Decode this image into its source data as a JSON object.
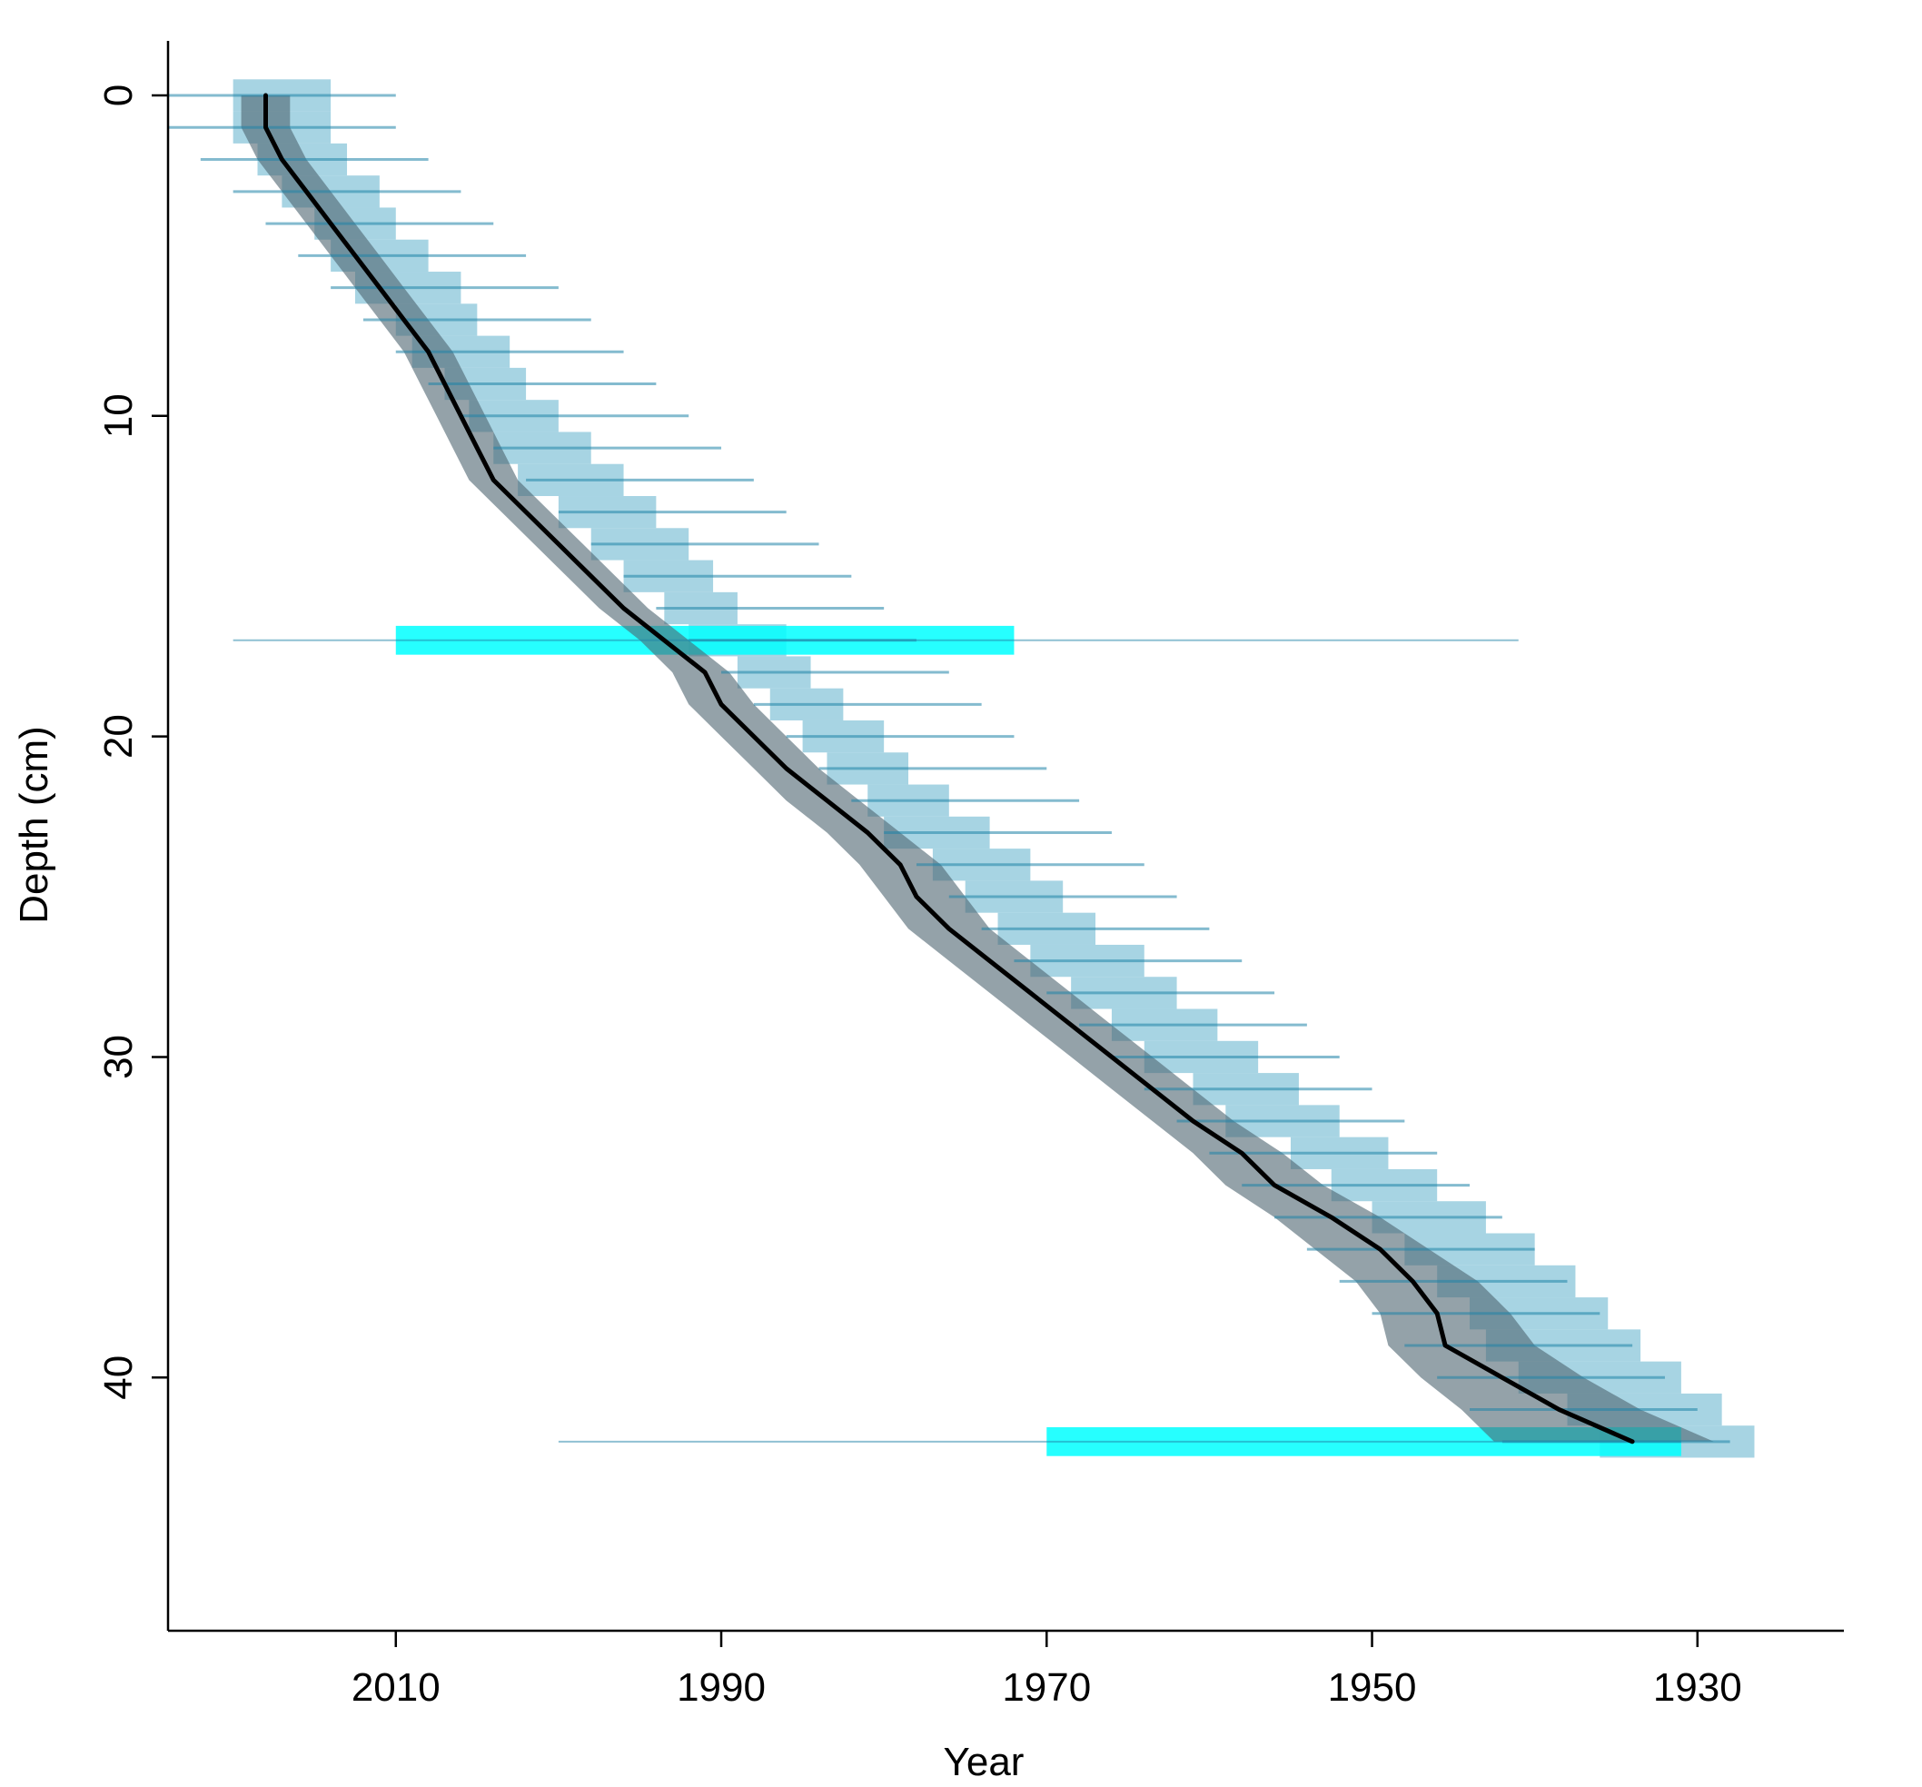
{
  "chart_data": {
    "type": "line",
    "title": "",
    "xlabel": "Year",
    "ylabel": "Depth (cm)",
    "x_axis_reversed": true,
    "y_axis_reversed": true,
    "xlim": [
      2024,
      1921
    ],
    "ylim": [
      -1.7,
      47.9
    ],
    "x_ticks": [
      2010,
      1990,
      1970,
      1950,
      1930
    ],
    "x_tick_labels": [
      "2010",
      "1990",
      "1970",
      "1950",
      "1930"
    ],
    "y_ticks": [
      0,
      10,
      20,
      30,
      40
    ],
    "y_tick_labels": [
      "0",
      "10",
      "20",
      "30",
      "40"
    ],
    "grid": false,
    "legend": "none",
    "colors": {
      "median_line": "#000000",
      "ci_band": "#4d6470",
      "model_boxes": "#8ac6da",
      "date_lines": "#1f83a8",
      "highlight": "#00ffff"
    },
    "series": [
      {
        "role": "median age-depth model",
        "x": [
          2018,
          2018,
          2017,
          2015.5,
          2014,
          2012.5,
          2011,
          2009.5,
          2008,
          2007,
          2006,
          2005,
          2004,
          2002,
          2000,
          1998,
          1996,
          1993.5,
          1991,
          1990,
          1988,
          1986,
          1983.5,
          1981,
          1979,
          1978,
          1976,
          1973.5,
          1971,
          1968.5,
          1966,
          1963.5,
          1961,
          1958,
          1956,
          1952.5,
          1949.5,
          1947.5,
          1946,
          1945.5,
          1942,
          1938.5,
          1934
        ],
        "y": [
          0,
          1,
          2,
          3,
          4,
          5,
          6,
          7,
          8,
          9,
          10,
          11,
          12,
          13,
          14,
          15,
          16,
          17,
          18,
          19,
          20,
          21,
          22,
          23,
          24,
          25,
          26,
          27,
          28,
          29,
          30,
          31,
          32,
          33,
          34,
          35,
          36,
          37,
          38,
          39,
          40,
          41,
          42
        ]
      }
    ],
    "confidence_band": {
      "y": [
        0,
        1,
        2,
        3,
        4,
        5,
        6,
        7,
        8,
        9,
        10,
        11,
        12,
        13,
        14,
        15,
        16,
        17,
        18,
        19,
        20,
        21,
        22,
        23,
        24,
        25,
        26,
        27,
        28,
        29,
        30,
        31,
        32,
        33,
        34,
        35,
        36,
        37,
        38,
        39,
        40,
        41,
        42
      ],
      "young": [
        2019.5,
        2019.5,
        2018.5,
        2017,
        2015.5,
        2014,
        2012.5,
        2011,
        2009.5,
        2008.5,
        2007.5,
        2006.5,
        2005.5,
        2003.5,
        2001.5,
        1999.5,
        1997.5,
        1995,
        1993,
        1992,
        1990,
        1988,
        1986,
        1983.5,
        1981.5,
        1980,
        1978.5,
        1976,
        1973.5,
        1971,
        1968.5,
        1966,
        1963.5,
        1961,
        1959,
        1956,
        1953.5,
        1951,
        1949.5,
        1949,
        1947,
        1944.5,
        1942.5
      ],
      "old": [
        2016.5,
        2016.5,
        2015.5,
        2014,
        2012.5,
        2011,
        2009.5,
        2008,
        2006.5,
        2005.5,
        2004.5,
        2003.5,
        2002.5,
        2000.5,
        1998.5,
        1996.5,
        1994.5,
        1992,
        1989.5,
        1988,
        1986,
        1984,
        1981.5,
        1979,
        1976.5,
        1975,
        1973.5,
        1971,
        1968.5,
        1966,
        1963.5,
        1961,
        1958.5,
        1955.5,
        1953,
        1949.5,
        1946.5,
        1943.5,
        1941.5,
        1940,
        1937,
        1933.5,
        1929
      ]
    },
    "model_boxes": {
      "y": [
        0,
        1,
        2,
        3,
        4,
        5,
        6,
        7,
        8,
        9,
        10,
        11,
        12,
        13,
        14,
        15,
        16,
        17,
        18,
        19,
        20,
        21,
        22,
        23,
        24,
        25,
        26,
        27,
        28,
        29,
        30,
        31,
        32,
        33,
        34,
        35,
        36,
        37,
        38,
        39,
        40,
        41,
        42
      ],
      "young": [
        2020,
        2020,
        2018.5,
        2017,
        2015,
        2014,
        2012.5,
        2010,
        2009,
        2007,
        2005.5,
        2004,
        2002.5,
        2000,
        1998,
        1996,
        1993.5,
        1992,
        1989,
        1987,
        1985,
        1983.5,
        1981,
        1980,
        1977,
        1975,
        1973,
        1971,
        1968.5,
        1966,
        1964,
        1961,
        1959,
        1955,
        1952.5,
        1950,
        1948,
        1946,
        1944,
        1943,
        1941,
        1938,
        1936
      ],
      "old": [
        2014,
        2014,
        2013,
        2011,
        2010,
        2008,
        2006,
        2005,
        2003,
        2002,
        2000,
        1998,
        1996,
        1994,
        1992,
        1990.5,
        1989,
        1986,
        1984.5,
        1982.5,
        1980,
        1978.5,
        1976,
        1973.5,
        1971,
        1969,
        1967,
        1964,
        1962,
        1959.5,
        1957,
        1954.5,
        1952,
        1949,
        1946,
        1943,
        1940,
        1937.5,
        1935.5,
        1933.5,
        1931,
        1928.5,
        1926.5
      ]
    },
    "date_ranges": {
      "y": [
        0,
        1,
        2,
        3,
        4,
        5,
        6,
        7,
        8,
        9,
        10,
        11,
        12,
        13,
        14,
        15,
        16,
        17,
        18,
        19,
        20,
        21,
        22,
        23,
        24,
        25,
        26,
        27,
        28,
        29,
        30,
        31,
        32,
        33,
        34,
        35,
        36,
        37,
        38,
        39,
        40,
        41,
        42
      ],
      "young": [
        2024,
        2024,
        2022,
        2020,
        2018,
        2016,
        2014,
        2012,
        2010,
        2008,
        2006,
        2004,
        2002,
        2000,
        1998,
        1996,
        1994,
        1992,
        1990,
        1988,
        1986,
        1984,
        1982,
        1980,
        1978,
        1976,
        1974,
        1972,
        1970,
        1968,
        1966,
        1964,
        1962,
        1960,
        1958,
        1956,
        1954,
        1952,
        1950,
        1948,
        1946,
        1944,
        1942
      ],
      "old": [
        2010,
        2010,
        2008,
        2006,
        2004,
        2002,
        2000,
        1998,
        1996,
        1994,
        1992,
        1990,
        1988,
        1986,
        1984,
        1982,
        1980,
        1978,
        1976,
        1974,
        1972,
        1970,
        1968,
        1966,
        1964,
        1962,
        1960,
        1958,
        1956,
        1954,
        1952,
        1950,
        1948,
        1946,
        1944,
        1942,
        1940,
        1938,
        1936,
        1934,
        1932,
        1930,
        1928
      ]
    },
    "highlighted_dates": [
      {
        "depth": 17,
        "box": [
          2010,
          1972
        ],
        "range": [
          2020,
          1941
        ]
      },
      {
        "depth": 42,
        "box": [
          1970,
          1931
        ],
        "range": [
          2000,
          1931
        ]
      }
    ]
  }
}
